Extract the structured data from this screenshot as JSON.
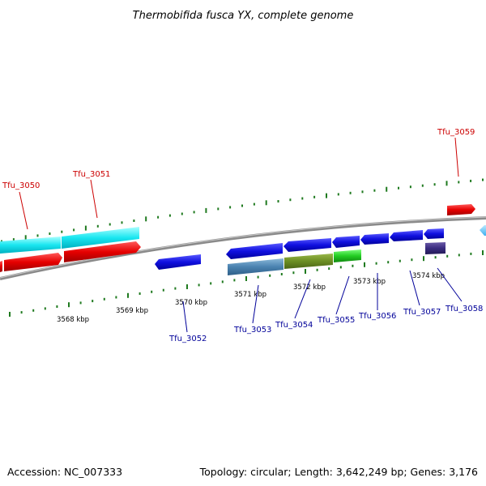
{
  "title": "Thermobifida fusca YX, complete genome",
  "footer": {
    "accession": "Accession: NC_007333",
    "summary": "Topology: circular; Length: 3,642,249 bp; Genes: 3,176"
  },
  "colors": {
    "forward_label": "#cc0000",
    "reverse_label": "#000099",
    "backbone": "#8a8a8a",
    "tick": "#1f7a1f"
  },
  "ruler": [
    "3568 kbp",
    "3569 kbp",
    "3570 kbp",
    "3571 kbp",
    "3572 kbp",
    "3573 kbp",
    "3574 kbp"
  ],
  "forward_genes": [
    {
      "name": "Tfu_3050"
    },
    {
      "name": "Tfu_3051"
    },
    {
      "name": "Tfu_3059"
    }
  ],
  "reverse_genes": [
    {
      "name": "Tfu_3052"
    },
    {
      "name": "Tfu_3053"
    },
    {
      "name": "Tfu_3054"
    },
    {
      "name": "Tfu_3055"
    },
    {
      "name": "Tfu_3056"
    },
    {
      "name": "Tfu_3057"
    },
    {
      "name": "Tfu_3058"
    }
  ]
}
